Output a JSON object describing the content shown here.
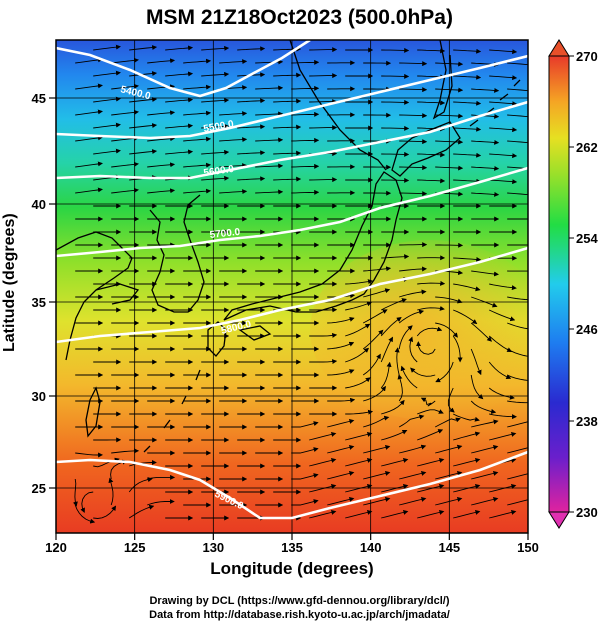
{
  "title": "MSM 21Z18Oct2023 (500.0hPa)",
  "xlabel": "Longitude (degrees)",
  "ylabel": "Latitude  (degrees)",
  "credit_line1": "Drawing by DCL (https://www.gfd-dennou.org/library/dcl/)",
  "credit_line2": "Data from http://database.rish.kyoto-u.ac.jp/arch/jmadata/",
  "map": {
    "lon_range": [
      120,
      150
    ],
    "lat_range": [
      22.4,
      47.6
    ],
    "lon_ticks": [
      "120",
      "125",
      "130",
      "135",
      "140",
      "145",
      "150"
    ],
    "lat_ticks": [
      "25",
      "30",
      "35",
      "40",
      "45"
    ],
    "grid_lines": true,
    "overlay": "streamlines"
  },
  "colorbar": {
    "min": 230,
    "max": 270,
    "ticks": [
      "270",
      "262",
      "254",
      "246",
      "238",
      "230"
    ],
    "colors": [
      "#e0239f",
      "#2a2ad0",
      "#1e7cf0",
      "#22ccec",
      "#22dd55",
      "#88e02a",
      "#e6e022",
      "#f5a524",
      "#f25a20",
      "#e83a2a"
    ]
  },
  "contours": [
    {
      "value": "5400.0",
      "label": "5400.0"
    },
    {
      "value": "5500.0",
      "label": "5500.0"
    },
    {
      "value": "5600.0",
      "label": "5600.0"
    },
    {
      "value": "5700.0",
      "label": "5700.0"
    },
    {
      "value": "5800.0",
      "label": "5800.0"
    },
    {
      "value": "5900.0",
      "label": "5900.0"
    }
  ]
}
